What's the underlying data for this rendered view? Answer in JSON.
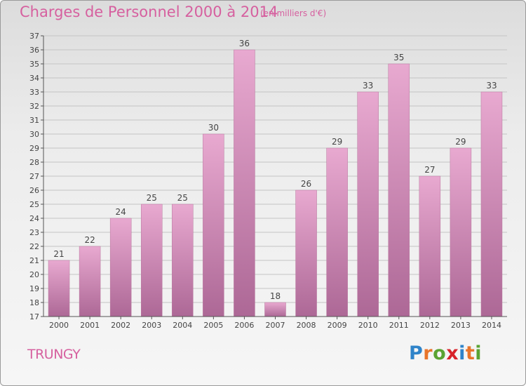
{
  "title": "Charges de Personnel 2000 à 2014",
  "subtitle": "(en milliers d'€)",
  "commune": "TRUNGY",
  "logo": {
    "letters": [
      "P",
      "r",
      "o",
      "x",
      "i",
      "t",
      "i"
    ],
    "colors": [
      "#2f83c9",
      "#e8742a",
      "#5aa332",
      "#d8232a",
      "#2f83c9",
      "#e8742a",
      "#5aa332"
    ]
  },
  "colors": {
    "bar_top": "#e8a9d0",
    "bar_bottom": "#ad6896",
    "text": "#d6609f"
  },
  "chart_data": {
    "type": "bar",
    "title": "Charges de Personnel 2000 à 2014",
    "subtitle": "(en milliers d'€)",
    "categories": [
      "2000",
      "2001",
      "2002",
      "2003",
      "2004",
      "2005",
      "2006",
      "2007",
      "2008",
      "2009",
      "2010",
      "2011",
      "2012",
      "2013",
      "2014"
    ],
    "values": [
      21,
      22,
      24,
      25,
      25,
      30,
      36,
      18,
      26,
      29,
      33,
      35,
      27,
      29,
      33
    ],
    "ylim": [
      17,
      37
    ],
    "yticks": [
      17,
      18,
      19,
      20,
      21,
      22,
      23,
      24,
      25,
      26,
      27,
      28,
      29,
      30,
      31,
      32,
      33,
      34,
      35,
      36,
      37
    ],
    "grid": true
  }
}
